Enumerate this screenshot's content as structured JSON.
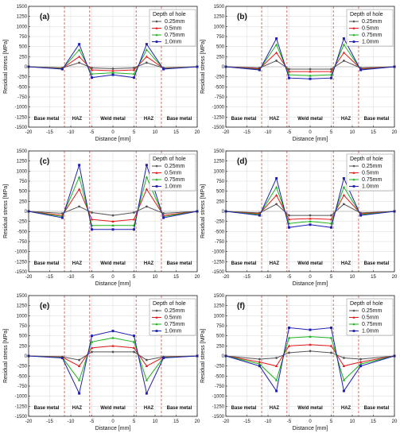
{
  "figure": {
    "xlabel": "Distance [mm]",
    "ylabel": "Residual stress [MPa]",
    "legend_title": "Depth of hole",
    "series_names": [
      "0.25mm",
      "0.5mm",
      "0.75mm",
      "1.0mm"
    ],
    "colors": [
      "#555555",
      "#e31a1c",
      "#1db21d",
      "#1f1fb4"
    ],
    "boundary_color": "#c0392b",
    "zone_labels": [
      "Base metal",
      "HAZ",
      "Weld metal",
      "HAZ",
      "Base metal"
    ],
    "x_ticks": [
      "-20",
      "-15",
      "-10",
      "-5",
      "0",
      "5",
      "10",
      "15",
      "20"
    ],
    "y_ticks": [
      "-1500",
      "-1250",
      "-1000",
      "-750",
      "-500",
      "-250",
      "0",
      "250",
      "500",
      "750",
      "1000",
      "1250",
      "1500"
    ]
  },
  "chart_data": [
    {
      "type": "line",
      "panel_label": "(a)",
      "title": "",
      "xlabel": "Distance [mm]",
      "ylabel": "Residual stress [MPa]",
      "xlim": [
        -20,
        20
      ],
      "ylim": [
        -1500,
        1500
      ],
      "grid": true,
      "legend": "top-right",
      "boundaries": [
        -11.5,
        -5.5,
        5.5,
        11.5
      ],
      "x": [
        -20,
        -12,
        -8,
        -5,
        0,
        5,
        8,
        12,
        20
      ],
      "series": [
        {
          "name": "0.25mm",
          "values": [
            0,
            -30,
            100,
            -30,
            -50,
            -30,
            100,
            -30,
            0
          ]
        },
        {
          "name": "0.5mm",
          "values": [
            0,
            -40,
            250,
            -80,
            -100,
            -80,
            250,
            -40,
            0
          ]
        },
        {
          "name": "0.75mm",
          "values": [
            0,
            -50,
            420,
            -180,
            -150,
            -180,
            420,
            -50,
            0
          ]
        },
        {
          "name": "1.0mm",
          "values": [
            0,
            -60,
            560,
            -270,
            -200,
            -270,
            560,
            -60,
            0
          ]
        }
      ]
    },
    {
      "type": "line",
      "panel_label": "(b)",
      "title": "",
      "xlabel": "Distance [mm]",
      "ylabel": "Residual stress [MPa]",
      "xlim": [
        -20,
        20
      ],
      "ylim": [
        -1500,
        1500
      ],
      "grid": true,
      "legend": "top-right",
      "boundaries": [
        -11.5,
        -5.5,
        5.5,
        11.5
      ],
      "x": [
        -20,
        -12,
        -8,
        -5,
        0,
        5,
        8,
        12,
        20
      ],
      "series": [
        {
          "name": "0.25mm",
          "values": [
            0,
            -30,
            150,
            -60,
            -60,
            -60,
            150,
            -30,
            0
          ]
        },
        {
          "name": "0.5mm",
          "values": [
            0,
            -50,
            350,
            -120,
            -120,
            -120,
            350,
            -50,
            0
          ]
        },
        {
          "name": "0.75mm",
          "values": [
            0,
            -70,
            550,
            -200,
            -220,
            -200,
            550,
            -70,
            0
          ]
        },
        {
          "name": "1.0mm",
          "values": [
            0,
            -80,
            700,
            -280,
            -300,
            -280,
            700,
            -80,
            0
          ]
        }
      ]
    },
    {
      "type": "line",
      "panel_label": "(c)",
      "title": "",
      "xlabel": "Distance [mm]",
      "ylabel": "Residual stress [MPa]",
      "xlim": [
        -20,
        20
      ],
      "ylim": [
        -1500,
        1500
      ],
      "grid": true,
      "legend": "top-right",
      "boundaries": [
        -11.5,
        -5.5,
        5.5,
        11.5
      ],
      "x": [
        -20,
        -12,
        -8,
        -5,
        0,
        5,
        8,
        12,
        20
      ],
      "series": [
        {
          "name": "0.25mm",
          "values": [
            0,
            -50,
            120,
            -30,
            -100,
            -30,
            120,
            -50,
            0
          ]
        },
        {
          "name": "0.5mm",
          "values": [
            0,
            -100,
            550,
            -200,
            -250,
            -200,
            550,
            -100,
            0
          ]
        },
        {
          "name": "0.75mm",
          "values": [
            0,
            -130,
            850,
            -350,
            -350,
            -350,
            850,
            -130,
            0
          ]
        },
        {
          "name": "1.0mm",
          "values": [
            0,
            -160,
            1150,
            -450,
            -450,
            -450,
            1150,
            -160,
            0
          ]
        }
      ]
    },
    {
      "type": "line",
      "panel_label": "(d)",
      "title": "",
      "xlabel": "Distance [mm]",
      "ylabel": "Residual stress [MPa]",
      "xlim": [
        -20,
        20
      ],
      "ylim": [
        -1500,
        1500
      ],
      "grid": true,
      "legend": "top-right",
      "boundaries": [
        -11.5,
        -5.5,
        5.5,
        11.5
      ],
      "x": [
        -20,
        -12,
        -8,
        -5,
        0,
        5,
        8,
        12,
        20
      ],
      "series": [
        {
          "name": "0.25mm",
          "values": [
            0,
            -40,
            180,
            -100,
            -100,
            -100,
            180,
            -40,
            0
          ]
        },
        {
          "name": "0.5mm",
          "values": [
            0,
            -60,
            400,
            -200,
            -180,
            -200,
            400,
            -60,
            0
          ]
        },
        {
          "name": "0.75mm",
          "values": [
            0,
            -80,
            600,
            -300,
            -250,
            -300,
            600,
            -80,
            0
          ]
        },
        {
          "name": "1.0mm",
          "values": [
            0,
            -100,
            820,
            -400,
            -330,
            -400,
            820,
            -100,
            0
          ]
        }
      ]
    },
    {
      "type": "line",
      "panel_label": "(e)",
      "title": "",
      "xlabel": "Distance [mm]",
      "ylabel": "Residual stress [MPa]",
      "xlim": [
        -20,
        20
      ],
      "ylim": [
        -1500,
        1500
      ],
      "grid": true,
      "legend": "top-right",
      "boundaries": [
        -11.5,
        -5.5,
        5.5,
        11.5
      ],
      "x": [
        -20,
        -12,
        -8,
        -5,
        0,
        5,
        8,
        12,
        20
      ],
      "series": [
        {
          "name": "0.25mm",
          "values": [
            0,
            -20,
            -100,
            100,
            100,
            100,
            -100,
            -20,
            0
          ]
        },
        {
          "name": "0.5mm",
          "values": [
            0,
            -30,
            -250,
            200,
            250,
            200,
            -250,
            -30,
            0
          ]
        },
        {
          "name": "0.75mm",
          "values": [
            0,
            -40,
            -600,
            350,
            450,
            350,
            -600,
            -40,
            0
          ]
        },
        {
          "name": "1.0mm",
          "values": [
            0,
            -50,
            -930,
            500,
            620,
            500,
            -930,
            -50,
            0
          ]
        }
      ]
    },
    {
      "type": "line",
      "panel_label": "(f)",
      "title": "",
      "xlabel": "Distance [mm]",
      "ylabel": "Residual stress [MPa]",
      "xlim": [
        -20,
        20
      ],
      "ylim": [
        -1500,
        1500
      ],
      "grid": true,
      "legend": "top-right",
      "boundaries": [
        -11.5,
        -5.5,
        5.5,
        11.5
      ],
      "x": [
        -20,
        -12,
        -8,
        -5,
        0,
        5,
        8,
        12,
        20
      ],
      "series": [
        {
          "name": "0.25mm",
          "values": [
            0,
            -80,
            -50,
            80,
            120,
            80,
            -50,
            -80,
            0
          ]
        },
        {
          "name": "0.5mm",
          "values": [
            0,
            -150,
            -250,
            250,
            280,
            250,
            -250,
            -150,
            0
          ]
        },
        {
          "name": "0.75mm",
          "values": [
            0,
            -200,
            -600,
            450,
            480,
            450,
            -600,
            -200,
            0
          ]
        },
        {
          "name": "1.0mm",
          "values": [
            0,
            -250,
            -870,
            700,
            650,
            700,
            -870,
            -250,
            0
          ]
        }
      ]
    }
  ]
}
